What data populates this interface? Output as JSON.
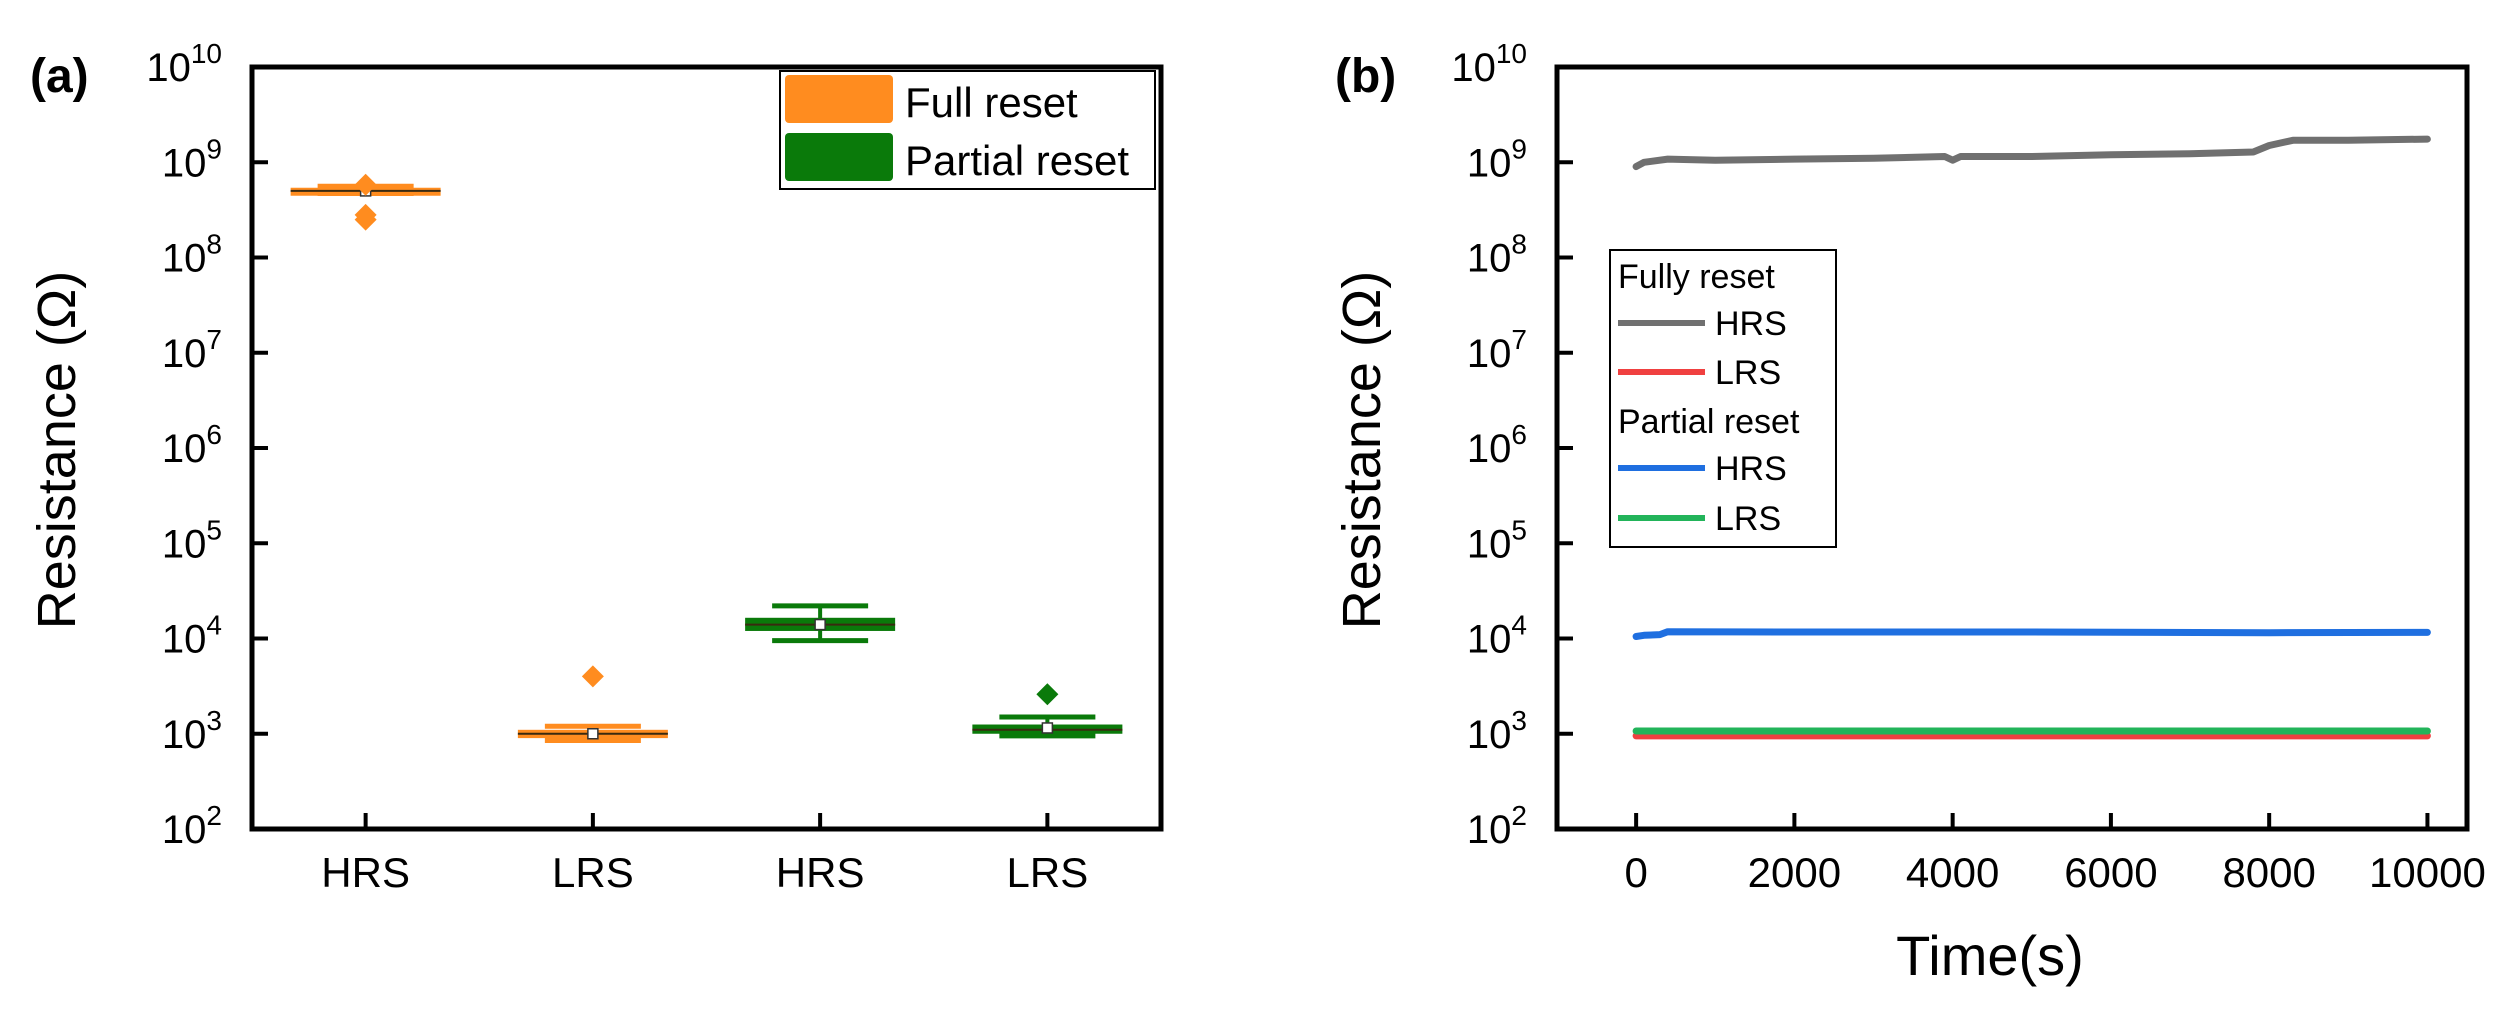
{
  "panels": [
    {
      "panel_label": "(a)",
      "ylabel": "Resistance (Ω)",
      "legend": [
        {
          "label": "Full reset",
          "color": "#FF8C1F"
        },
        {
          "label": "Partial reset",
          "color": "#0A7A0A"
        }
      ]
    },
    {
      "panel_label": "(b)",
      "ylabel": "Resistance (Ω)",
      "xlabel": "Time(s)",
      "legend": [
        {
          "label": "Fully reset",
          "type": "header"
        },
        {
          "label": "HRS",
          "color": "#707070"
        },
        {
          "label": "LRS",
          "color": "#F04040"
        },
        {
          "label": "Partial reset",
          "type": "header"
        },
        {
          "label": "HRS",
          "color": "#1F6FE0"
        },
        {
          "label": "LRS",
          "color": "#22B45A"
        }
      ]
    }
  ],
  "chart_data": [
    {
      "type": "box",
      "panel_label": "(a)",
      "ylabel": "Resistance (Ω)",
      "xlabel": "",
      "yscale": "log",
      "ylim": [
        100,
        10000000000
      ],
      "yticks": [
        100,
        1000,
        10000,
        100000,
        1000000,
        10000000,
        100000000,
        1000000000,
        10000000000
      ],
      "categories": [
        "HRS",
        "LRS",
        "HRS",
        "LRS"
      ],
      "legend_position": "top-right",
      "grid": false,
      "boxes": [
        {
          "category": "HRS",
          "group": "Full reset",
          "color": "#FF8C1F",
          "q1": 480000000,
          "median": 500000000,
          "q3": 540000000,
          "whisker_low": 470000000,
          "whisker_high": 560000000,
          "mean": 500000000,
          "outliers": [
            280000000,
            250000000,
            580000000
          ]
        },
        {
          "category": "LRS",
          "group": "Full reset",
          "color": "#FF8C1F",
          "q1": 900,
          "median": 1000,
          "q3": 1100,
          "whisker_low": 850,
          "whisker_high": 1200,
          "mean": 1000,
          "outliers": [
            4000
          ]
        },
        {
          "category": "HRS",
          "group": "Partial reset",
          "color": "#0A7A0A",
          "q1": 12000,
          "median": 14000,
          "q3": 16500,
          "whisker_low": 9500,
          "whisker_high": 22000,
          "mean": 14000,
          "outliers": []
        },
        {
          "category": "LRS",
          "group": "Partial reset",
          "color": "#0A7A0A",
          "q1": 1000,
          "median": 1100,
          "q3": 1250,
          "whisker_low": 950,
          "whisker_high": 1500,
          "mean": 1150,
          "outliers": [
            2600
          ]
        }
      ]
    },
    {
      "type": "line",
      "panel_label": "(b)",
      "ylabel": "Resistance (Ω)",
      "xlabel": "Time(s)",
      "yscale": "log",
      "ylim": [
        100,
        10000000000
      ],
      "xlim": [
        -1000,
        10500
      ],
      "xticks": [
        0,
        2000,
        4000,
        6000,
        8000,
        10000
      ],
      "yticks": [
        100,
        1000,
        10000,
        100000,
        1000000,
        10000000,
        100000000,
        1000000000,
        10000000000
      ],
      "legend_position": "left-middle",
      "grid": false,
      "series": [
        {
          "name": "HRS",
          "group": "Fully reset",
          "color": "#707070",
          "x": [
            0,
            100,
            400,
            1000,
            2000,
            3000,
            3900,
            4000,
            4100,
            5000,
            6000,
            7000,
            7800,
            8000,
            8300,
            9000,
            10000
          ],
          "y": [
            900000000,
            1000000000,
            1080000000,
            1050000000,
            1080000000,
            1100000000,
            1150000000,
            1050000000,
            1150000000,
            1150000000,
            1200000000,
            1230000000,
            1280000000,
            1500000000,
            1700000000,
            1700000000,
            1750000000
          ]
        },
        {
          "name": "LRS",
          "group": "Fully reset",
          "color": "#F04040",
          "x": [
            0,
            10000
          ],
          "y": [
            950,
            950
          ]
        },
        {
          "name": "HRS",
          "group": "Partial reset",
          "color": "#1F6FE0",
          "x": [
            0,
            100,
            300,
            400,
            2000,
            5000,
            8000,
            10000
          ],
          "y": [
            10500,
            10800,
            11000,
            11800,
            11700,
            11700,
            11500,
            11600
          ]
        },
        {
          "name": "LRS",
          "group": "Partial reset",
          "color": "#22B45A",
          "x": [
            0,
            10000
          ],
          "y": [
            1070,
            1070
          ]
        }
      ]
    }
  ]
}
